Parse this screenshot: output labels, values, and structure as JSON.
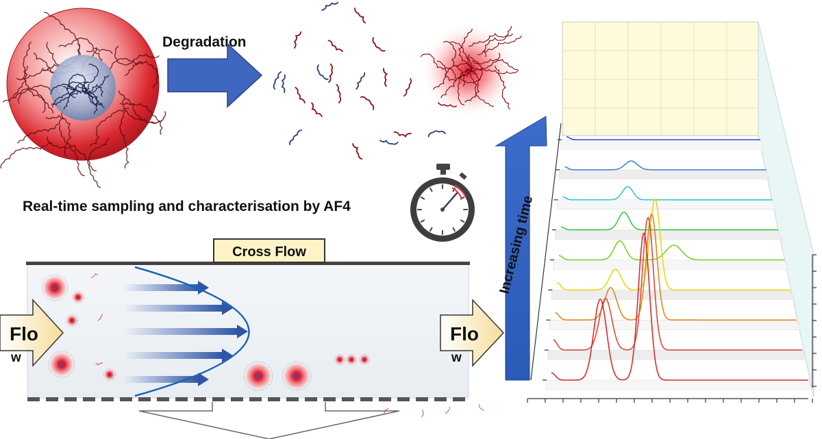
{
  "labels": {
    "degradation": "Degradation",
    "realtime": "Real-time sampling and characterisation by AF4",
    "cross_flow": "Cross Flow",
    "flow_left_line1": "Flo",
    "flow_left_line2": "w",
    "flow_right_line1": "Flo",
    "flow_right_line2": "w",
    "increasing_time": "Increasing time"
  },
  "colors": {
    "particle_red": "#d41f2a",
    "core_blue": "#7d8fb5",
    "arrow_blue": "#2f5fb4",
    "parabola_blue": "#1d63b3",
    "label_bg": "#fff3c7",
    "panel_bg": "#fdfbdc"
  },
  "icons": [
    "stopwatch-icon",
    "nanoparticle-icon",
    "polymer-coil-icon"
  ],
  "chart_data": {
    "type": "line",
    "title": "",
    "xlabel": "",
    "ylabel": "",
    "series": [
      {
        "color": "#d62b2b",
        "peaks": [
          [
            0.0,
            0.05,
            0.015
          ],
          [
            0.19,
            0.55,
            0.025
          ],
          [
            0.36,
            1.0,
            0.022
          ]
        ]
      },
      {
        "color": "#d94a3a",
        "peaks": [
          [
            0.0,
            0.07,
            0.015
          ],
          [
            0.21,
            0.35,
            0.025
          ],
          [
            0.38,
            0.9,
            0.022
          ]
        ]
      },
      {
        "color": "#e2861b",
        "peaks": [
          [
            0.0,
            0.05,
            0.015
          ],
          [
            0.23,
            0.22,
            0.025
          ],
          [
            0.4,
            0.72,
            0.022
          ]
        ]
      },
      {
        "color": "#e8d51a",
        "peaks": [
          [
            0.0,
            0.05,
            0.015
          ],
          [
            0.25,
            0.14,
            0.025
          ],
          [
            0.42,
            0.62,
            0.022
          ]
        ]
      },
      {
        "color": "#7bd02a",
        "peaks": [
          [
            0.0,
            0.03,
            0.015
          ],
          [
            0.27,
            0.13,
            0.025
          ],
          [
            0.51,
            0.1,
            0.035
          ]
        ]
      },
      {
        "color": "#34c94a",
        "peaks": [
          [
            0.0,
            0.02,
            0.015
          ],
          [
            0.29,
            0.12,
            0.025
          ]
        ]
      },
      {
        "color": "#32c9d1",
        "peaks": [
          [
            0.0,
            0.02,
            0.015
          ],
          [
            0.31,
            0.09,
            0.025
          ]
        ]
      },
      {
        "color": "#3f8ad3",
        "peaks": [
          [
            0.0,
            0.02,
            0.015
          ],
          [
            0.33,
            0.06,
            0.03
          ]
        ]
      },
      {
        "color": "#2a4cc8",
        "peaks": [
          [
            0.0,
            0.02,
            0.015
          ]
        ]
      }
    ]
  }
}
